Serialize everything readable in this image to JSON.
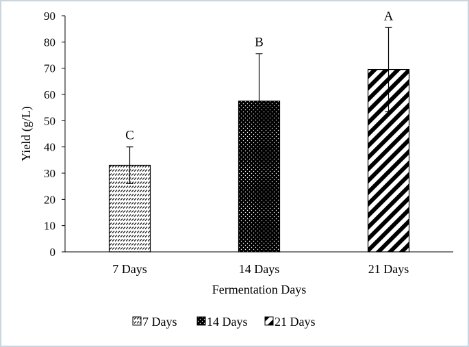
{
  "chart_data": {
    "type": "bar",
    "categories": [
      "7 Days",
      "14 Days",
      "21 Days"
    ],
    "values": [
      33,
      57.5,
      69.5
    ],
    "error_upper": [
      40,
      75.5,
      85.5
    ],
    "error_lower": [
      26,
      57.5,
      53.5
    ],
    "significance_labels": [
      "C",
      "B",
      "A"
    ],
    "patterns": [
      "dashed-diagonal",
      "dots-on-black",
      "wide-diagonal-stripes"
    ],
    "title": "",
    "xlabel": "Fermentation Days",
    "ylabel": "Yield (g/L)",
    "ylim": [
      0,
      90
    ],
    "yticks": [
      0,
      10,
      20,
      30,
      40,
      50,
      60,
      70,
      80,
      90
    ],
    "grid": false,
    "legend": {
      "position": "bottom",
      "entries": [
        "7 Days",
        "14 Days",
        "21 Days"
      ]
    }
  }
}
